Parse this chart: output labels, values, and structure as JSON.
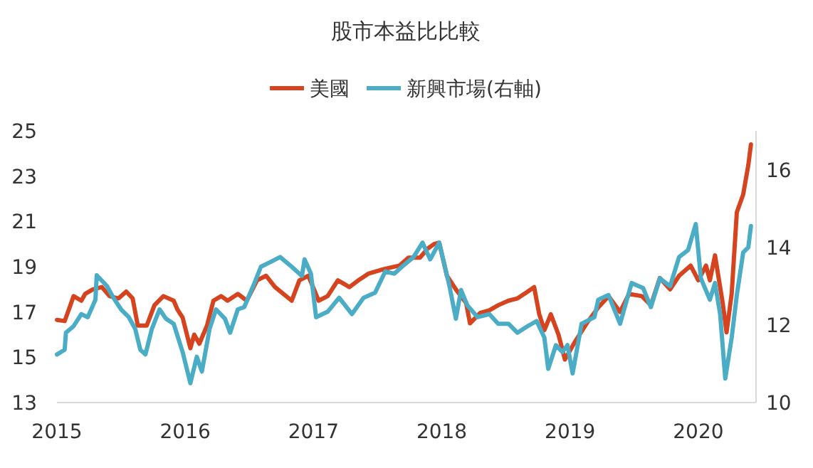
{
  "chart_data": {
    "type": "line",
    "title": "股市本益比比較",
    "legend": "top",
    "grid": false,
    "line_style": "solid",
    "marker": "none",
    "xlim": [
      2015,
      2020.45
    ],
    "xticks": [
      2015,
      2016,
      2017,
      2018,
      2019,
      2020
    ],
    "ylim": [
      13,
      25
    ],
    "yticks": [
      13,
      15,
      17,
      19,
      21,
      23,
      25
    ],
    "y2lim": [
      10,
      17
    ],
    "y2ticks": [
      10,
      12,
      14,
      16
    ],
    "series": [
      {
        "name": "美國",
        "color": "#d5441e",
        "x": [
          2015.0,
          2015.06,
          2015.09,
          2015.13,
          2015.19,
          2015.22,
          2015.28,
          2015.35,
          2015.41,
          2015.48,
          2015.54,
          2015.59,
          2015.63,
          2015.7,
          2015.76,
          2015.83,
          2015.91,
          2015.94,
          2015.98,
          2016.04,
          2016.07,
          2016.11,
          2016.17,
          2016.22,
          2016.28,
          2016.33,
          2016.41,
          2016.48,
          2016.56,
          2016.63,
          2016.7,
          2016.83,
          2016.89,
          2016.96,
          2017.04,
          2017.11,
          2017.19,
          2017.28,
          2017.35,
          2017.43,
          2017.52,
          2017.59,
          2017.67,
          2017.74,
          2017.83,
          2017.89,
          2017.94,
          2017.98,
          2018.04,
          2018.11,
          2018.19,
          2018.22,
          2018.3,
          2018.37,
          2018.44,
          2018.52,
          2018.59,
          2018.67,
          2018.72,
          2018.76,
          2018.8,
          2018.85,
          2018.91,
          2018.96,
          2019.04,
          2019.13,
          2019.22,
          2019.3,
          2019.39,
          2019.46,
          2019.56,
          2019.63,
          2019.7,
          2019.78,
          2019.85,
          2019.94,
          2020.0,
          2020.06,
          2020.09,
          2020.13,
          2020.19,
          2020.22,
          2020.26,
          2020.3,
          2020.35,
          2020.39,
          2020.41
        ],
        "values": [
          16.65,
          16.6,
          17.07,
          17.7,
          17.5,
          17.8,
          18.0,
          18.1,
          17.7,
          17.6,
          17.9,
          17.6,
          16.4,
          16.4,
          17.3,
          17.7,
          17.5,
          17.1,
          16.75,
          15.4,
          16.0,
          15.6,
          16.4,
          17.5,
          17.7,
          17.5,
          17.8,
          17.5,
          18.4,
          18.6,
          18.1,
          17.5,
          18.4,
          18.6,
          17.5,
          17.7,
          18.4,
          18.1,
          18.4,
          18.7,
          18.85,
          18.95,
          19.05,
          19.4,
          19.4,
          19.8,
          20.0,
          20.06,
          18.6,
          18.0,
          17.4,
          16.5,
          16.96,
          17.07,
          17.3,
          17.5,
          17.6,
          17.9,
          18.1,
          16.9,
          16.2,
          16.9,
          16.0,
          14.9,
          15.7,
          16.5,
          17.2,
          17.7,
          17.0,
          17.8,
          17.7,
          17.3,
          18.5,
          18.0,
          18.6,
          19.05,
          18.4,
          19.05,
          18.4,
          19.5,
          17.4,
          16.1,
          17.8,
          21.4,
          22.2,
          23.5,
          24.4
        ]
      },
      {
        "name": "新興市場(右軸)",
        "color": "#4bacc6",
        "axis": "y2",
        "x": [
          2015.0,
          2015.06,
          2015.07,
          2015.13,
          2015.19,
          2015.24,
          2015.3,
          2015.31,
          2015.39,
          2015.44,
          2015.5,
          2015.56,
          2015.61,
          2015.65,
          2015.69,
          2015.74,
          2015.8,
          2015.85,
          2015.91,
          2015.98,
          2016.04,
          2016.09,
          2016.13,
          2016.19,
          2016.24,
          2016.31,
          2016.35,
          2016.41,
          2016.46,
          2016.54,
          2016.59,
          2016.67,
          2016.74,
          2016.83,
          2016.91,
          2016.93,
          2016.98,
          2017.02,
          2017.11,
          2017.2,
          2017.3,
          2017.39,
          2017.48,
          2017.56,
          2017.63,
          2017.69,
          2017.78,
          2017.85,
          2017.91,
          2017.98,
          2018.06,
          2018.11,
          2018.15,
          2018.2,
          2018.28,
          2018.37,
          2018.44,
          2018.52,
          2018.59,
          2018.67,
          2018.74,
          2018.8,
          2018.83,
          2018.89,
          2018.94,
          2018.98,
          2019.02,
          2019.09,
          2019.19,
          2019.22,
          2019.3,
          2019.39,
          2019.48,
          2019.57,
          2019.63,
          2019.7,
          2019.78,
          2019.85,
          2019.92,
          2019.98,
          2020.02,
          2020.09,
          2020.13,
          2020.17,
          2020.21,
          2020.26,
          2020.3,
          2020.35,
          2020.39,
          2020.41
        ],
        "values": [
          11.24,
          11.36,
          11.8,
          11.97,
          12.28,
          12.2,
          12.65,
          13.28,
          13.0,
          12.7,
          12.4,
          12.2,
          11.9,
          11.36,
          11.24,
          11.9,
          12.4,
          12.16,
          12.03,
          11.3,
          10.5,
          11.18,
          10.8,
          11.9,
          12.4,
          12.16,
          11.8,
          12.4,
          12.46,
          13.08,
          13.5,
          13.63,
          13.75,
          13.5,
          13.26,
          13.69,
          13.32,
          12.2,
          12.34,
          12.7,
          12.28,
          12.7,
          12.83,
          13.38,
          13.32,
          13.5,
          13.75,
          14.12,
          13.69,
          14.12,
          13.0,
          12.16,
          12.9,
          12.5,
          12.2,
          12.28,
          12.03,
          12.03,
          11.8,
          11.97,
          12.1,
          11.67,
          10.87,
          11.48,
          11.3,
          11.48,
          10.75,
          12.03,
          12.2,
          12.65,
          12.77,
          12.03,
          13.08,
          12.95,
          12.46,
          13.2,
          13.0,
          13.75,
          13.93,
          14.6,
          13.2,
          12.65,
          13.08,
          12.28,
          10.62,
          11.67,
          12.77,
          13.87,
          14.0,
          14.55
        ]
      }
    ]
  }
}
